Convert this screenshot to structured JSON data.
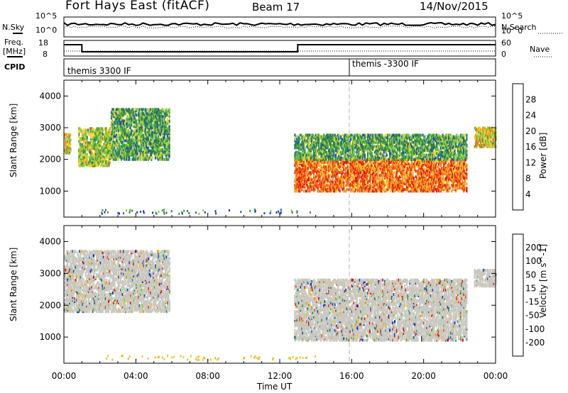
{
  "header": {
    "title": "Fort Hays East (fitACF)",
    "beam": "Beam 17",
    "date": "14/Nov/2015"
  },
  "top_panels": {
    "nsky_label": "N.Sky",
    "nsky_ticks": [
      "10^5",
      "10^0"
    ],
    "nsearch_label": "N.Search",
    "nsearch_ticks": [
      "10^5",
      "10^0"
    ],
    "freq_label": "Freq.",
    "freq_unit": "[MHz]",
    "freq_ticks": [
      "18",
      "8"
    ],
    "nave_label": "Nave",
    "nave_ticks": [
      "60",
      "0"
    ],
    "cpid_label": "CPID",
    "cpid_segments": [
      "themis 3300 IF",
      "themis -3300 IF"
    ]
  },
  "chart_data": [
    {
      "type": "heatmap",
      "name": "power",
      "ylabel": "Slant Range [km]",
      "yticks": [
        1000,
        2000,
        3000,
        4000
      ],
      "ylim": [
        180,
        4500
      ],
      "xlim_hours": [
        0,
        24
      ],
      "colorbar_label": "Power [dB]",
      "colorbar_ticks": [
        "4",
        "8",
        "12",
        "16",
        "20",
        "24",
        "28"
      ],
      "colorbar_colors": [
        "#1030f0",
        "#2050b0",
        "#2e7a4e",
        "#3aa03a",
        "#7ec84a",
        "#f0d020",
        "#f2a020",
        "#f06a10",
        "#ee3010",
        "#e01010"
      ],
      "echo_regions": [
        {
          "t": [
            0.0,
            0.4
          ],
          "range": [
            2200,
            2800
          ],
          "level": "mid-high"
        },
        {
          "t": [
            0.8,
            2.6
          ],
          "range": [
            1800,
            3000
          ],
          "level": "mixed"
        },
        {
          "t": [
            2.6,
            5.9
          ],
          "range": [
            2000,
            3600
          ],
          "level": "low-mid"
        },
        {
          "t": [
            12.8,
            22.4
          ],
          "range": [
            1000,
            2000
          ],
          "level": "high"
        },
        {
          "t": [
            12.8,
            22.4
          ],
          "range": [
            2000,
            2800
          ],
          "level": "low-mid"
        },
        {
          "t": [
            22.8,
            24.0
          ],
          "range": [
            2400,
            3000
          ],
          "level": "mid-high"
        }
      ]
    },
    {
      "type": "heatmap",
      "name": "velocity",
      "ylabel": "Slant Range [km]",
      "yticks": [
        1000,
        2000,
        3000,
        4000
      ],
      "ylim": [
        180,
        4500
      ],
      "xlim_hours": [
        0,
        24
      ],
      "xlabel": "Time UT",
      "xticks": [
        "00:00",
        "04:00",
        "08:00",
        "12:00",
        "16:00",
        "20:00",
        "00:00"
      ],
      "colorbar_label": "Velocity [m s^-1]",
      "colorbar_ticks": [
        "200",
        "100",
        "50",
        "15",
        "-15",
        "-50",
        "-100",
        "-200"
      ],
      "colorbar_colors": [
        "#1030c0",
        "#2a5fb0",
        "#2f8a5a",
        "#6cc040",
        "#c8c8c0",
        "#c8c8c0",
        "#f0c020",
        "#f09010",
        "#f04010",
        "#e01010"
      ],
      "echo_regions": [
        {
          "t": [
            0.0,
            5.9
          ],
          "range": [
            1800,
            3700
          ],
          "dominant": "ground scatter"
        },
        {
          "t": [
            12.8,
            22.4
          ],
          "range": [
            900,
            2800
          ],
          "dominant": "ground scatter"
        },
        {
          "t": [
            22.8,
            24.0
          ],
          "range": [
            2600,
            3100
          ],
          "dominant": "mixed"
        }
      ]
    }
  ],
  "colors": {
    "ground_scatter": "#c8c8c0",
    "marker_line": "#b0b0b0"
  }
}
